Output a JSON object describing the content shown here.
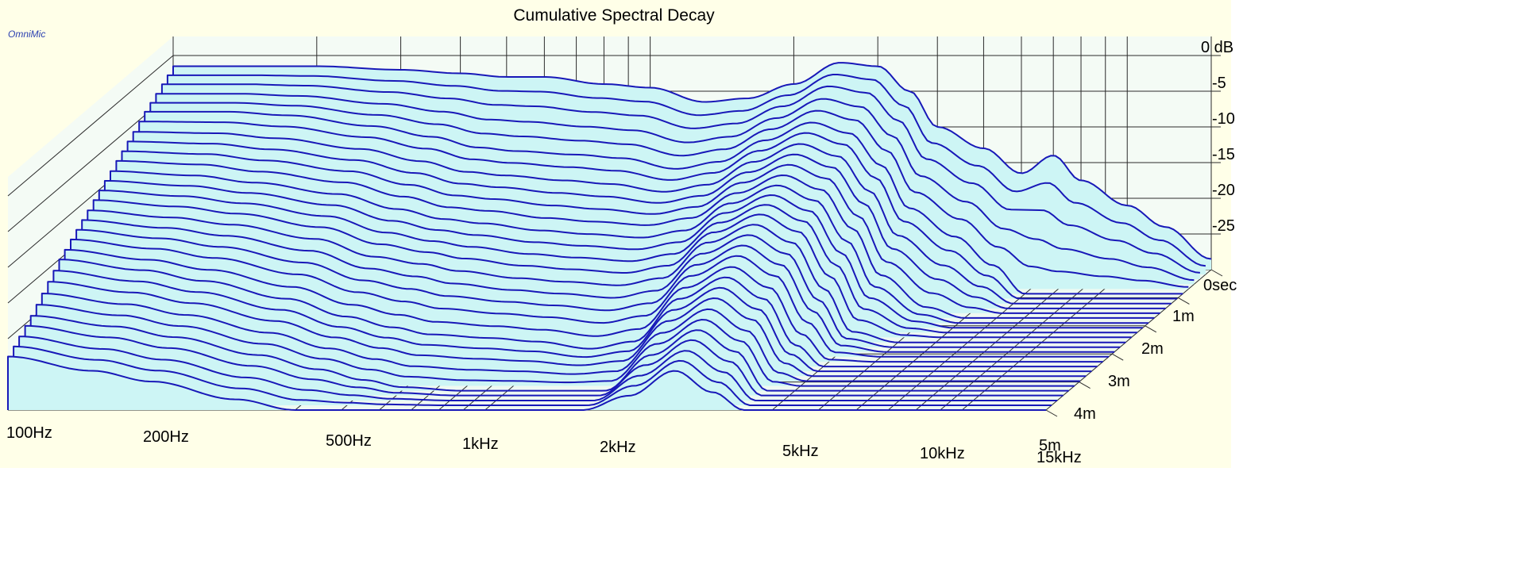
{
  "brand": "OmniMic",
  "colors": {
    "background": "#ffffe8",
    "surface_fill": "#cdf5f5",
    "surface_line": "#1818b8",
    "grid": "#2b2b2b"
  },
  "chart_data": {
    "type": "area",
    "subtype": "waterfall-3d",
    "title": "Cumulative Spectral Decay",
    "xlabel": "",
    "ylabel": "",
    "zlabel": "",
    "x_scale": "log",
    "x_range_hz": [
      100,
      15000
    ],
    "x_ticks": [
      {
        "value": 100,
        "label": "100Hz"
      },
      {
        "value": 200,
        "label": "200Hz"
      },
      {
        "value": 500,
        "label": "500Hz"
      },
      {
        "value": 1000,
        "label": "1kHz"
      },
      {
        "value": 2000,
        "label": "2kHz"
      },
      {
        "value": 5000,
        "label": "5kHz"
      },
      {
        "value": 10000,
        "label": "10kHz"
      },
      {
        "value": 15000,
        "label": "15kHz"
      }
    ],
    "y_range_db": [
      -30,
      0
    ],
    "y_ticks": [
      {
        "value": 0,
        "label": "0 dB"
      },
      {
        "value": -5,
        "label": "-5"
      },
      {
        "value": -10,
        "label": "-10"
      },
      {
        "value": -15,
        "label": "-15"
      },
      {
        "value": -20,
        "label": "-20"
      },
      {
        "value": -25,
        "label": "-25"
      }
    ],
    "t_range_ms": [
      0,
      5
    ],
    "t_ticks": [
      {
        "value": 0,
        "label": "0sec"
      },
      {
        "value": 1,
        "label": "1m"
      },
      {
        "value": 2,
        "label": "2m"
      },
      {
        "value": 3,
        "label": "3m"
      },
      {
        "value": 4,
        "label": "4m"
      },
      {
        "value": 5,
        "label": "5m"
      }
    ],
    "grid": true,
    "slice_count": 30,
    "decay_ms": [
      0,
      0.17,
      0.34,
      0.52,
      0.69,
      0.86,
      1.03,
      1.21,
      1.38,
      1.55,
      1.72,
      1.9,
      2.07,
      2.24,
      2.41,
      2.59,
      2.76,
      2.93,
      3.1,
      3.28,
      3.45,
      3.62,
      3.79,
      3.97,
      4.14,
      4.31,
      4.48,
      4.66,
      4.83,
      5.0
    ],
    "freq_hz": [
      100,
      150,
      200,
      300,
      400,
      500,
      600,
      800,
      1000,
      1300,
      1600,
      2000,
      2500,
      3000,
      3500,
      4000,
      5000,
      6000,
      7000,
      8000,
      10000,
      12000,
      15000
    ],
    "series": [
      {
        "decay_ms": 0,
        "db": [
          -1.5,
          -1.5,
          -1.5,
          -2.0,
          -2.5,
          -3.0,
          -3.0,
          -4.0,
          -4.5,
          -6.5,
          -6.0,
          -4.0,
          -1.0,
          -1.5,
          -5.0,
          -10.0,
          -13.0,
          -16.5,
          -14.0,
          -17.5,
          -21.0,
          -24.0,
          -28.5
        ]
      },
      {
        "decay_ms": 0.86,
        "db": [
          -4.5,
          -4.5,
          -5.0,
          -6.5,
          -8.0,
          -9.5,
          -10.0,
          -10.5,
          -11.0,
          -12.5,
          -11.5,
          -8.5,
          -6.0,
          -7.5,
          -12.0,
          -18.0,
          -22.0,
          -26.0,
          -30.0,
          -30.0,
          -30.0,
          -30.0,
          -30.0
        ]
      },
      {
        "decay_ms": 1.72,
        "db": [
          -8.0,
          -8.5,
          -9.5,
          -11.0,
          -13.0,
          -14.5,
          -15.0,
          -16.0,
          -16.5,
          -17.0,
          -16.0,
          -12.5,
          -10.0,
          -12.0,
          -17.5,
          -24.0,
          -28.5,
          -30.0,
          -30.0,
          -30.0,
          -30.0,
          -30.0,
          -30.0
        ]
      },
      {
        "decay_ms": 2.59,
        "db": [
          -11.5,
          -12.5,
          -13.5,
          -15.5,
          -18.0,
          -19.0,
          -20.0,
          -21.0,
          -21.5,
          -22.0,
          -21.0,
          -16.0,
          -13.5,
          -16.0,
          -22.5,
          -28.5,
          -30.0,
          -30.0,
          -30.0,
          -30.0,
          -30.0,
          -30.0,
          -30.0
        ]
      },
      {
        "decay_ms": 3.45,
        "db": [
          -15.0,
          -16.5,
          -18.0,
          -20.5,
          -23.0,
          -24.5,
          -25.5,
          -26.0,
          -26.5,
          -27.5,
          -26.5,
          -20.5,
          -17.5,
          -20.5,
          -27.0,
          -30.0,
          -30.0,
          -30.0,
          -30.0,
          -30.0,
          -30.0,
          -30.0,
          -30.0
        ]
      },
      {
        "decay_ms": 4.31,
        "db": [
          -19.5,
          -21.0,
          -22.5,
          -25.0,
          -27.0,
          -28.5,
          -29.5,
          -30.0,
          -30.0,
          -30.0,
          -30.0,
          -25.0,
          -21.5,
          -24.5,
          -30.0,
          -30.0,
          -30.0,
          -30.0,
          -30.0,
          -30.0,
          -30.0,
          -30.0,
          -30.0
        ]
      },
      {
        "decay_ms": 5.0,
        "db": [
          -22.5,
          -24.5,
          -26.0,
          -28.5,
          -30.0,
          -30.0,
          -30.0,
          -30.0,
          -30.0,
          -30.0,
          -30.0,
          -28.0,
          -24.5,
          -27.5,
          -30.0,
          -30.0,
          -30.0,
          -30.0,
          -30.0,
          -30.0,
          -30.0,
          -30.0,
          -30.0
        ]
      }
    ]
  }
}
